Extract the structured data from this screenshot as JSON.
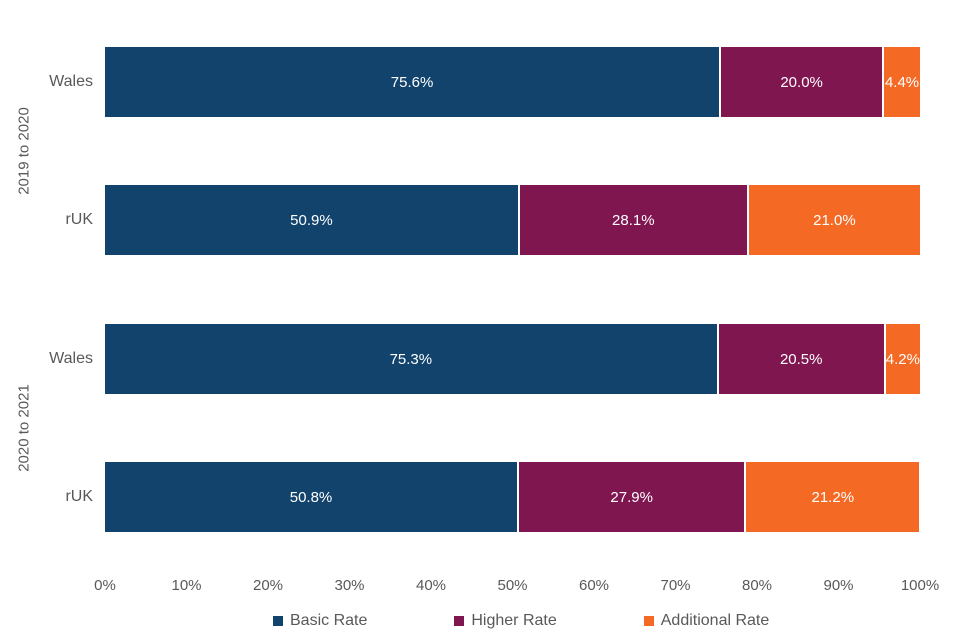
{
  "chart_data": {
    "type": "bar",
    "orientation": "horizontal",
    "stacked": true,
    "title": "",
    "xlabel": "",
    "ylabel": "",
    "xlim": [
      0,
      100
    ],
    "grid": false,
    "legend_position": "bottom",
    "x_ticks": [
      "0%",
      "10%",
      "20%",
      "30%",
      "40%",
      "50%",
      "60%",
      "70%",
      "80%",
      "90%",
      "100%"
    ],
    "series": [
      {
        "name": "Basic Rate",
        "color": "#12436D"
      },
      {
        "name": "Higher Rate",
        "color": "#801650"
      },
      {
        "name": "Additional Rate",
        "color": "#F46A25"
      }
    ],
    "groups": [
      {
        "label": "2019 to 2020",
        "rows": [
          {
            "category": "Wales",
            "values": [
              75.6,
              20.0,
              4.4
            ],
            "labels": [
              "75.6%",
              "20.0%",
              "4.4%"
            ]
          },
          {
            "category": "rUK",
            "values": [
              50.9,
              28.1,
              21.0
            ],
            "labels": [
              "50.9%",
              "28.1%",
              "21.0%"
            ]
          }
        ]
      },
      {
        "label": "2020 to 2021",
        "rows": [
          {
            "category": "Wales",
            "values": [
              75.3,
              20.5,
              4.2
            ],
            "labels": [
              "75.3%",
              "20.5%",
              "4.2%"
            ]
          },
          {
            "category": "rUK",
            "values": [
              50.8,
              27.9,
              21.2
            ],
            "labels": [
              "50.8%",
              "27.9%",
              "21.2%"
            ]
          }
        ]
      }
    ]
  },
  "colors": {
    "background": "#ffffff",
    "axis_text": "#595959",
    "bar_label_text": "#ffffff",
    "segment_divider": "#ffffff"
  }
}
